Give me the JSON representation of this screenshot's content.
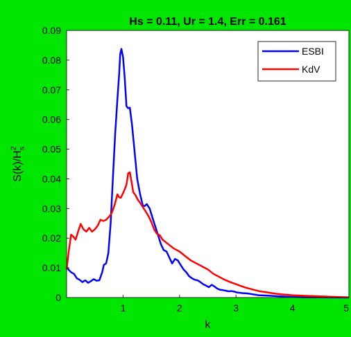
{
  "colors": {
    "figure_background": "#00e600",
    "axes_background": "#ffffff",
    "esbi": "#0000ff",
    "kdv": "#ff0000"
  },
  "chart_data": {
    "type": "line",
    "title": "Hs = 0.11, Ur = 1.4, Err = 0.161",
    "xlabel": "k",
    "ylabel": "S(k)/H",
    "ylabel_superscript": "2",
    "ylabel_subscript": "s",
    "xlim": [
      0,
      5
    ],
    "ylim": [
      0,
      0.09
    ],
    "xticks": [
      1,
      2,
      3,
      4,
      5
    ],
    "yticks": [
      0,
      0.01,
      0.02,
      0.03,
      0.04,
      0.05,
      0.06,
      0.07,
      0.08,
      0.09
    ],
    "xtick_labels": [
      "1",
      "2",
      "3",
      "4",
      "5"
    ],
    "ytick_labels": [
      "0",
      "0.01",
      "0.02",
      "0.03",
      "0.04",
      "0.05",
      "0.06",
      "0.07",
      "0.08",
      "0.09"
    ],
    "grid": false,
    "legend_position": "top-right",
    "series": [
      {
        "name": "ESBI",
        "color": "#0000ff",
        "x": [
          0,
          0.03,
          0.08,
          0.13,
          0.18,
          0.23,
          0.28,
          0.33,
          0.38,
          0.43,
          0.48,
          0.53,
          0.58,
          0.63,
          0.66,
          0.7,
          0.74,
          0.78,
          0.82,
          0.86,
          0.9,
          0.93,
          0.95,
          0.97,
          1.0,
          1.03,
          1.06,
          1.09,
          1.12,
          1.16,
          1.2,
          1.25,
          1.3,
          1.35,
          1.38,
          1.42,
          1.47,
          1.52,
          1.57,
          1.62,
          1.67,
          1.72,
          1.77,
          1.82,
          1.87,
          1.92,
          1.97,
          2.02,
          2.07,
          2.12,
          2.17,
          2.22,
          2.27,
          2.32,
          2.37,
          2.42,
          2.47,
          2.52,
          2.57,
          2.62,
          2.67,
          2.72,
          2.77,
          2.82,
          2.87,
          2.92,
          2.97,
          3.02,
          3.07,
          3.12,
          3.2,
          3.3,
          3.4,
          3.5,
          3.6,
          3.7,
          3.8,
          3.9,
          4.0,
          4.2,
          4.5,
          5.0
        ],
        "y": [
          0.0105,
          0.0095,
          0.0085,
          0.008,
          0.0065,
          0.006,
          0.0052,
          0.0058,
          0.005,
          0.0055,
          0.0062,
          0.0057,
          0.0058,
          0.0085,
          0.011,
          0.0115,
          0.015,
          0.025,
          0.04,
          0.055,
          0.067,
          0.075,
          0.082,
          0.0838,
          0.081,
          0.074,
          0.0645,
          0.0638,
          0.064,
          0.058,
          0.05,
          0.04,
          0.035,
          0.031,
          0.0308,
          0.0315,
          0.03,
          0.027,
          0.024,
          0.021,
          0.018,
          0.016,
          0.0155,
          0.0135,
          0.0115,
          0.013,
          0.0125,
          0.011,
          0.0095,
          0.0085,
          0.0072,
          0.0065,
          0.006,
          0.0058,
          0.0052,
          0.0045,
          0.004,
          0.0035,
          0.0043,
          0.0037,
          0.003,
          0.0026,
          0.0025,
          0.0023,
          0.0021,
          0.0022,
          0.002,
          0.0017,
          0.0016,
          0.0015,
          0.0014,
          0.0011,
          0.0008,
          0.0007,
          0.0006,
          0.0005,
          0.0004,
          0.0003,
          0.0002,
          0.0001,
          5e-05,
          0
        ]
      },
      {
        "name": "KdV",
        "color": "#ff0000",
        "x": [
          0,
          0.04,
          0.08,
          0.12,
          0.16,
          0.2,
          0.25,
          0.3,
          0.35,
          0.4,
          0.45,
          0.5,
          0.55,
          0.6,
          0.65,
          0.7,
          0.75,
          0.8,
          0.85,
          0.9,
          0.93,
          0.96,
          1.0,
          1.03,
          1.06,
          1.09,
          1.12,
          1.15,
          1.18,
          1.22,
          1.26,
          1.3,
          1.35,
          1.4,
          1.45,
          1.5,
          1.55,
          1.6,
          1.65,
          1.7,
          1.8,
          1.9,
          2.0,
          2.1,
          2.2,
          2.3,
          2.4,
          2.5,
          2.6,
          2.7,
          2.8,
          2.9,
          3.0,
          3.1,
          3.2,
          3.3,
          3.4,
          3.5,
          3.6,
          3.7,
          3.8,
          4.0,
          4.2,
          4.5,
          4.8,
          5.0
        ],
        "y": [
          0.0095,
          0.016,
          0.0212,
          0.0205,
          0.0195,
          0.022,
          0.0248,
          0.023,
          0.0222,
          0.0235,
          0.0222,
          0.023,
          0.0242,
          0.0262,
          0.0258,
          0.0262,
          0.0272,
          0.0285,
          0.0312,
          0.0348,
          0.0338,
          0.0336,
          0.0352,
          0.0365,
          0.038,
          0.0418,
          0.0422,
          0.039,
          0.0355,
          0.0345,
          0.033,
          0.032,
          0.0305,
          0.029,
          0.0275,
          0.0255,
          0.023,
          0.0215,
          0.021,
          0.0195,
          0.018,
          0.0165,
          0.0155,
          0.014,
          0.0125,
          0.0115,
          0.0105,
          0.0095,
          0.008,
          0.007,
          0.006,
          0.0052,
          0.0045,
          0.0038,
          0.0032,
          0.0027,
          0.0022,
          0.0019,
          0.0016,
          0.0013,
          0.0011,
          0.0008,
          0.0006,
          0.0004,
          0.0002,
          0.0001
        ]
      }
    ]
  }
}
